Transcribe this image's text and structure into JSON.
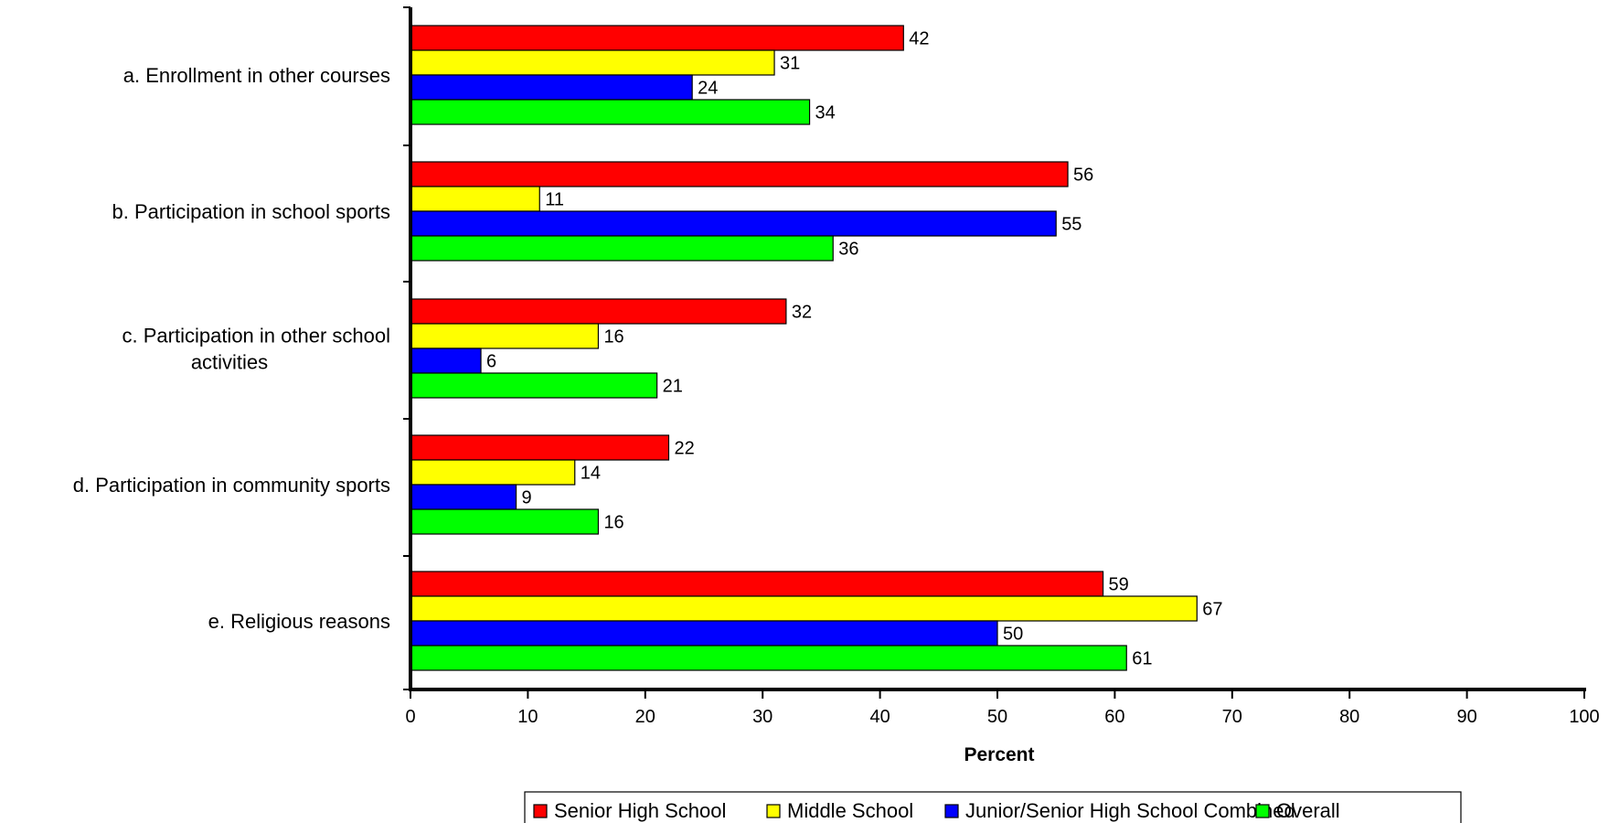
{
  "chart_data": {
    "type": "bar",
    "orientation": "horizontal",
    "categories": [
      [
        "a. Enrollment in other courses"
      ],
      [
        "b. Participation in school sports"
      ],
      [
        "c. Participation in other school",
        "activities"
      ],
      [
        "d. Participation in community sports"
      ],
      [
        "e. Religious reasons"
      ]
    ],
    "series": [
      {
        "name": "Senior High School",
        "color": "#ff0000",
        "values": [
          42,
          56,
          32,
          22,
          59
        ]
      },
      {
        "name": "Middle School",
        "color": "#ffff00",
        "values": [
          31,
          11,
          16,
          14,
          67
        ]
      },
      {
        "name": "Junior/Senior High School Combined",
        "color": "#0000ff",
        "values": [
          24,
          55,
          6,
          9,
          50
        ]
      },
      {
        "name": "Overall",
        "color": "#00ff00",
        "values": [
          34,
          36,
          21,
          16,
          61
        ]
      }
    ],
    "xlabel": "Percent",
    "xlim": [
      0,
      100
    ],
    "xticks": [
      0,
      10,
      20,
      30,
      40,
      50,
      60,
      70,
      80,
      90,
      100
    ],
    "grid": false,
    "legend_position": "bottom"
  }
}
